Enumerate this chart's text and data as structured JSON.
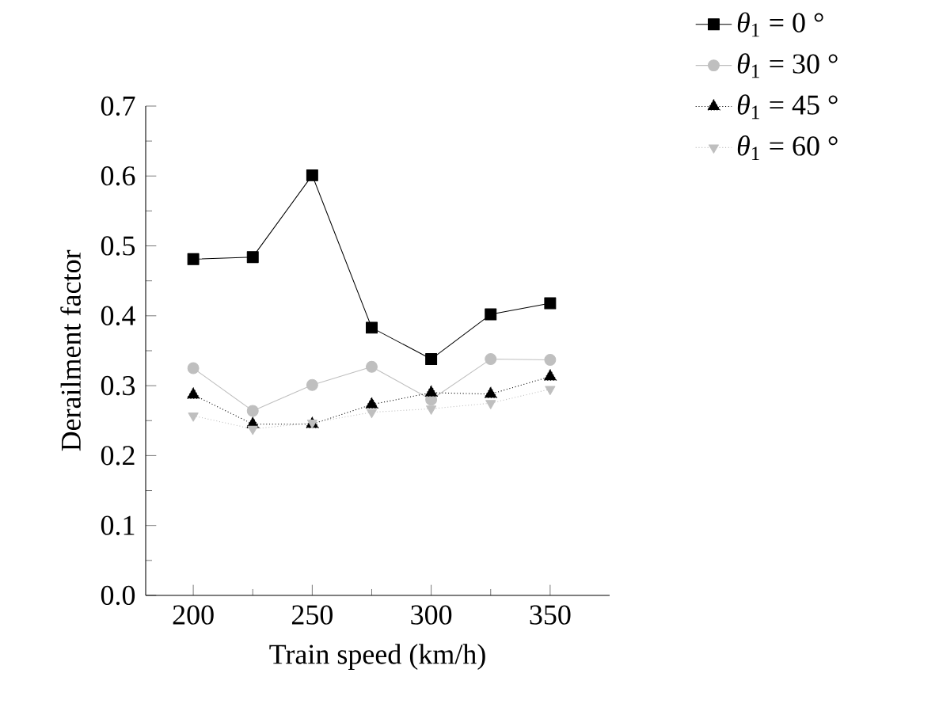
{
  "chart_data": {
    "type": "line",
    "xlabel": "Train speed (km/h)",
    "ylabel": "Derailment factor",
    "x": [
      200,
      225,
      250,
      275,
      300,
      325,
      350
    ],
    "series": [
      {
        "name": "*θ*$_{1}$ = 0 °",
        "color": "#000000",
        "marker": "square",
        "line_style": "solid",
        "values": [
          0.481,
          0.484,
          0.601,
          0.383,
          0.338,
          0.402,
          0.418
        ]
      },
      {
        "name": "*θ*$_{1}$ = 30 °",
        "color": "#bfbfbf",
        "marker": "circle",
        "line_style": "solid",
        "values": [
          0.325,
          0.264,
          0.301,
          0.327,
          0.28,
          0.338,
          0.337
        ]
      },
      {
        "name": "*θ*$_{1}$ = 45 °",
        "color": "#000000",
        "marker": "triangle",
        "line_style": "dotted",
        "values": [
          0.287,
          0.245,
          0.245,
          0.273,
          0.29,
          0.288,
          0.313
        ]
      },
      {
        "name": "*θ*$_{1}$ = 60 °",
        "color": "#bfbfbf",
        "marker": "triangle-down",
        "line_style": "dotted",
        "values": [
          0.257,
          0.238,
          0.247,
          0.262,
          0.267,
          0.275,
          0.295
        ]
      }
    ],
    "xlim": [
      180,
      375
    ],
    "xticks": [
      200,
      250,
      300,
      350
    ],
    "ylim": [
      0,
      0.7
    ],
    "yticks": [
      {
        "value": 0,
        "label": "0.0"
      },
      0.1,
      0.2,
      0.3,
      0.4,
      0.5,
      0.6,
      0.7
    ],
    "grid": false,
    "legend": "top right"
  }
}
